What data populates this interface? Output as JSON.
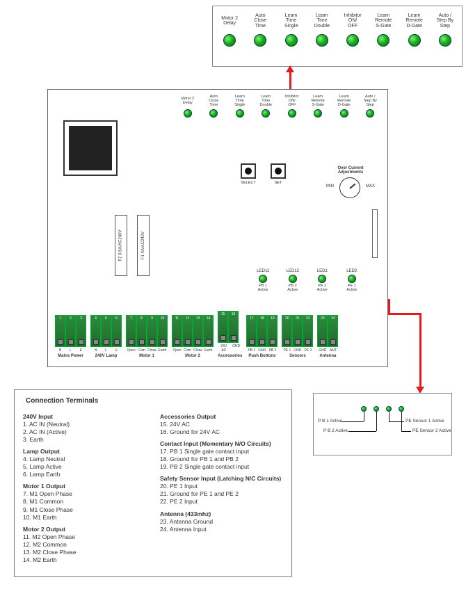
{
  "colors": {
    "led_fill": "#19b019",
    "led_highlight": "#7ff07f",
    "led_dark": "#0a6a0a",
    "terminal_green": "#2e8b3c",
    "terminal_green_dark": "#1e6b2c",
    "arrow_red": "#e41b1b",
    "border_gray": "#777777",
    "text": "#333333"
  },
  "top_callout_leds": [
    "Motor 2\nDelay",
    "Auto\nClose\nTime",
    "Learn\nTime\nSingle",
    "Learn\nTime\nDouble",
    "Inhibitor\nON/\nOFF",
    "Learn\nRemote\nS-Gate",
    "Learn\nRemote\nD-Gate",
    "Auto /\nStep By\nStep"
  ],
  "board_mini_leds": [
    "Motor 2\nDelay",
    "Auto\nClose\nTime",
    "Learn\nTime\nSingle",
    "Learn\nTime\nDouble",
    "Inhibitor\nON/\nOFF",
    "Learn\nRemote\nS-Gate",
    "Learn\nRemote\nD-Gate",
    "Auto /\nStep By\nStep"
  ],
  "buttons": {
    "select": "SELECT",
    "set": "SET"
  },
  "overcurrent": {
    "title": "Over Current\nAdjustments",
    "min": "MIN",
    "max": "MAX"
  },
  "fuses": {
    "f1": "F1 4A/AC240V",
    "f2": "F2 0.5A/AC240V"
  },
  "status_leds": [
    {
      "top": "LED11",
      "bottom": "PB 1\nActive"
    },
    {
      "top": "LED12",
      "bottom": "PB 2\nActive"
    },
    {
      "top": "LED1",
      "bottom": "PE 2\nActive"
    },
    {
      "top": "LED2",
      "bottom": "PE 1\nActive"
    }
  ],
  "terminal_blocks": [
    {
      "title": "Mains Power",
      "pins": [
        "N",
        "L",
        "E"
      ],
      "nums": [
        "1",
        "2",
        "3"
      ]
    },
    {
      "title": "240V Lamp",
      "pins": [
        "N",
        "L",
        "E"
      ],
      "nums": [
        "4",
        "5",
        "6"
      ]
    },
    {
      "title": "Motor 1",
      "pins": [
        "Open",
        "Com",
        "Close",
        "Earth"
      ],
      "nums": [
        "7",
        "8",
        "9",
        "10"
      ]
    },
    {
      "title": "Motor 2",
      "pins": [
        "Open",
        "Com",
        "Close",
        "Earth"
      ],
      "nums": [
        "11",
        "12",
        "13",
        "14"
      ]
    },
    {
      "title": "Accessories",
      "pins": [
        "24V AC",
        "GND"
      ],
      "nums": [
        "15",
        "16"
      ]
    },
    {
      "title": "Push Buttons",
      "pins": [
        "PB 1",
        "GND",
        "PB 2"
      ],
      "nums": [
        "17",
        "18",
        "19"
      ]
    },
    {
      "title": "Sensors",
      "pins": [
        "PE 1",
        "GND",
        "PE 2"
      ],
      "nums": [
        "20",
        "21",
        "22"
      ]
    },
    {
      "title": "Antenna",
      "pins": [
        "GND",
        "ANT"
      ],
      "nums": [
        "23",
        "24"
      ]
    }
  ],
  "br_callout": {
    "labels": {
      "pb1": "P B 1 Active",
      "pb2": "P B 2 Active",
      "pe1": "PE Sensor 1 Active",
      "pe2": "PE Sensor 2 Active"
    }
  },
  "conn_panel": {
    "title": "Connection Terminals",
    "left": [
      {
        "h": "240V Input",
        "items": [
          "1. AC IN (Neutral)",
          "2. AC IN (Active)",
          "3. Earth"
        ]
      },
      {
        "h": "Lamp Output",
        "items": [
          "4. Lamp Neutral",
          "5. Lamp Active",
          "6. Lamp Earth"
        ]
      },
      {
        "h": "Motor 1 Output",
        "items": [
          "7. M1 Open Phase",
          "8. M1 Common",
          "9. M1 Close Phase",
          "10. M1 Earth"
        ]
      },
      {
        "h": "Motor 2 Output",
        "items": [
          "11. M2 Open Phase",
          "12. M2 Common",
          "13. M2 Close Phase",
          "14. M2 Earth"
        ]
      }
    ],
    "right": [
      {
        "h": "Accessories Output",
        "items": [
          "15. 24V AC",
          "16. Ground for 24V AC"
        ]
      },
      {
        "h": "Contact Input (Momentary N/O Circuits)",
        "items": [
          "17. PB 1 Single gate contact input",
          "18. Ground for PB 1 and PB 2",
          "19. PB 2 Single gate contact input"
        ]
      },
      {
        "h": "Safety Sensor Input (Latching N/C Circuits)",
        "items": [
          "20. PE 1 Input",
          "21. Ground for PE 1 and PE 2",
          "22. PE 2 Input"
        ]
      },
      {
        "h": "Antenna (433mhz)",
        "items": [
          "23. Antenna Ground",
          "24. Antenna Input"
        ]
      }
    ]
  }
}
